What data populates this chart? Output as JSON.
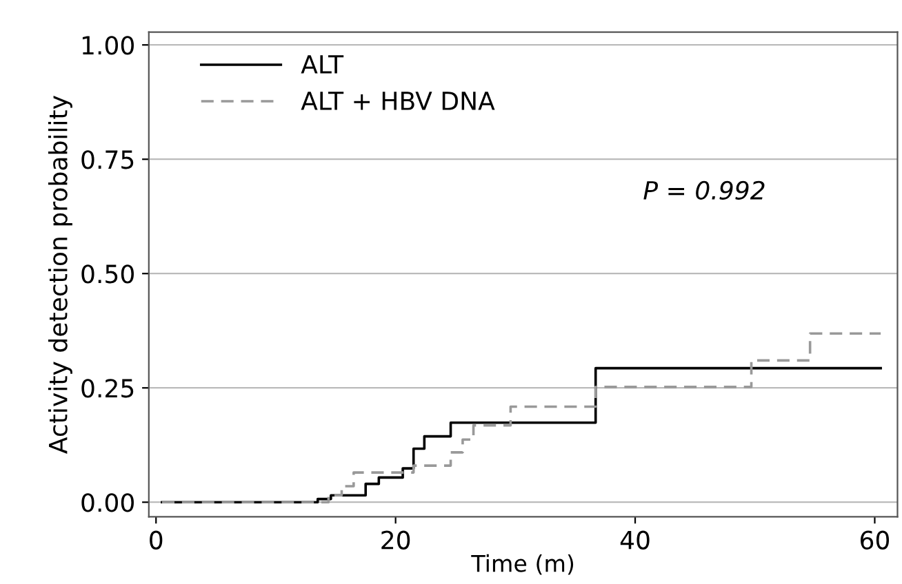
{
  "chart_data": {
    "type": "step",
    "xlabel": "Time (m)",
    "ylabel": "Activity detection probability",
    "xlim": [
      -0.6,
      61.9
    ],
    "ylim": [
      -0.032,
      1.028
    ],
    "xticks": [
      0,
      20,
      40,
      60
    ],
    "yticks": [
      {
        "value": 0,
        "label": "0.00"
      },
      {
        "value": 0.25,
        "label": "0.25"
      },
      {
        "value": 0.5,
        "label": "0.50"
      },
      {
        "value": 0.75,
        "label": "0.75"
      },
      {
        "value": 1,
        "label": "1.00"
      }
    ],
    "grid": "y",
    "legend": "top left",
    "annotations": [
      "P = 0.992"
    ],
    "series": [
      {
        "name": "ALT",
        "color": "#000000",
        "line_style": "solid",
        "x": [
          0.5,
          13.5,
          14.6,
          17.5,
          18.6,
          20.6,
          21.5,
          22.4,
          24.6,
          36.7,
          60.5
        ],
        "values": [
          0,
          0.007,
          0.015,
          0.04,
          0.054,
          0.074,
          0.117,
          0.144,
          0.174,
          0.293,
          0.293
        ]
      },
      {
        "name": "ALT + HBV DNA",
        "color": "#999999",
        "line_style": "dashed",
        "x": [
          0.5,
          14.4,
          15.5,
          16.5,
          21.5,
          24.6,
          25.6,
          26.5,
          29.6,
          36.7,
          49.7,
          54.6,
          60.5
        ],
        "values": [
          0,
          0.015,
          0.035,
          0.065,
          0.08,
          0.109,
          0.137,
          0.168,
          0.209,
          0.252,
          0.31,
          0.369,
          0.369
        ]
      }
    ]
  }
}
